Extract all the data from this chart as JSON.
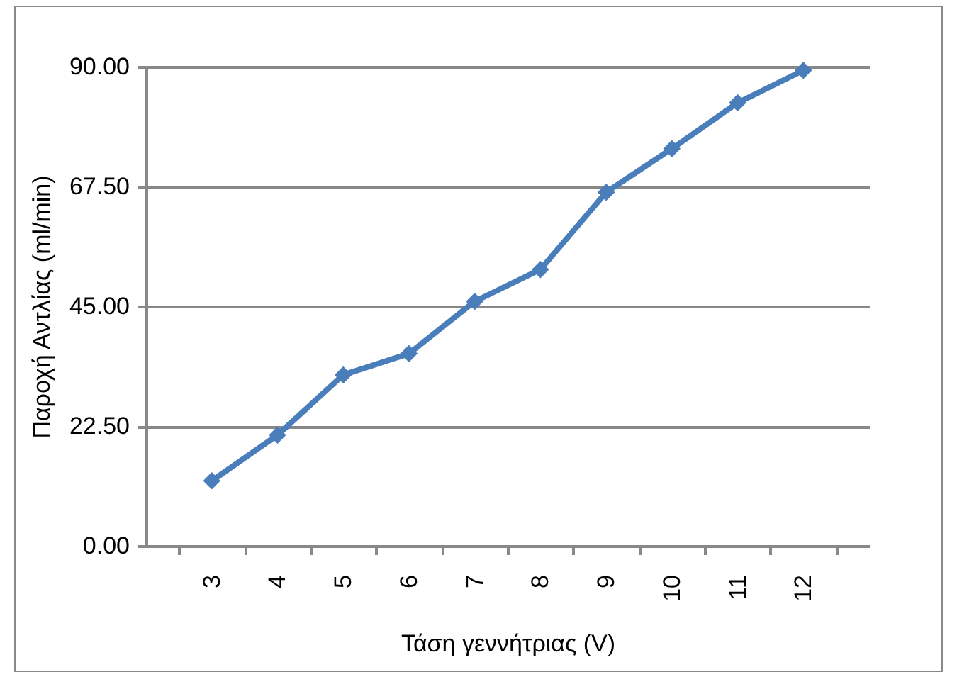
{
  "chart_data": {
    "type": "line",
    "xlabel": "Τάση γεννήτριας (V)",
    "ylabel": "Παροχή Αντλίας  (ml/min)",
    "categories": [
      "3",
      "4",
      "5",
      "6",
      "7",
      "8",
      "9",
      "10",
      "11",
      "12"
    ],
    "series": [
      {
        "color": "#4a7ebb",
        "values": [
          12.2,
          20.8,
          32.1,
          36.1,
          45.9,
          51.9,
          66.4,
          74.6,
          83.2,
          89.3
        ]
      }
    ],
    "ylim": [
      0,
      90
    ],
    "yticks": [
      {
        "value": 0,
        "label": "0.00"
      },
      {
        "value": 22.5,
        "label": "22.50"
      },
      {
        "value": 45,
        "label": "45.00"
      },
      {
        "value": 67.5,
        "label": "67.50"
      },
      {
        "value": 90,
        "label": "90.00"
      }
    ],
    "grid": "y",
    "marker": "diamond",
    "line_style": "solid",
    "legend": false
  }
}
